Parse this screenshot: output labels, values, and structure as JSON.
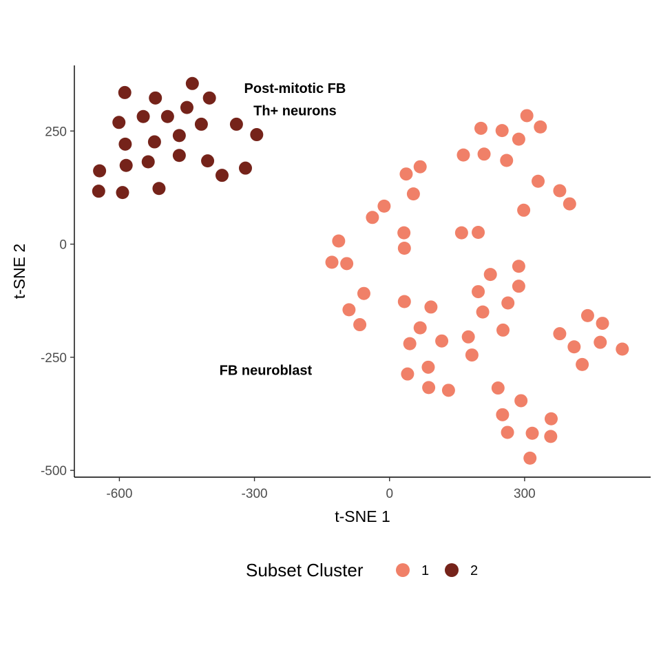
{
  "chart_data": {
    "type": "scatter",
    "xlabel": "t-SNE 1",
    "ylabel": "t-SNE 2",
    "xlim": [
      -700,
      580
    ],
    "ylim": [
      -515,
      395
    ],
    "x_ticks": [
      -600,
      -300,
      0,
      300
    ],
    "y_ticks": [
      -500,
      -250,
      0,
      250
    ],
    "grid": false,
    "legend": {
      "title": "Subset Cluster",
      "position": "bottom"
    },
    "annotations": [
      {
        "text": "Post-mitotic FB",
        "x": -210,
        "y": 345
      },
      {
        "text": "Th+ neurons",
        "x": -210,
        "y": 295
      },
      {
        "text": "FB neuroblast",
        "x": -275,
        "y": -278
      }
    ],
    "series": [
      {
        "name": "1",
        "color": "#F08068",
        "points": [
          [
            305,
            284
          ],
          [
            203,
            256
          ],
          [
            250,
            251
          ],
          [
            335,
            259
          ],
          [
            287,
            232
          ],
          [
            164,
            197
          ],
          [
            210,
            199
          ],
          [
            260,
            185
          ],
          [
            37,
            155
          ],
          [
            68,
            171
          ],
          [
            330,
            139
          ],
          [
            378,
            118
          ],
          [
            53,
            111
          ],
          [
            400,
            89
          ],
          [
            -12,
            84
          ],
          [
            298,
            75
          ],
          [
            -38,
            59
          ],
          [
            32,
            25
          ],
          [
            160,
            25
          ],
          [
            197,
            26
          ],
          [
            -113,
            7
          ],
          [
            33,
            -9
          ],
          [
            -128,
            -40
          ],
          [
            -95,
            -43
          ],
          [
            287,
            -49
          ],
          [
            224,
            -67
          ],
          [
            287,
            -93
          ],
          [
            -57,
            -109
          ],
          [
            197,
            -105
          ],
          [
            33,
            -127
          ],
          [
            263,
            -130
          ],
          [
            92,
            -139
          ],
          [
            -90,
            -145
          ],
          [
            207,
            -150
          ],
          [
            440,
            -158
          ],
          [
            473,
            -175
          ],
          [
            -66,
            -178
          ],
          [
            68,
            -185
          ],
          [
            252,
            -190
          ],
          [
            378,
            -198
          ],
          [
            175,
            -205
          ],
          [
            116,
            -214
          ],
          [
            45,
            -220
          ],
          [
            468,
            -217
          ],
          [
            410,
            -227
          ],
          [
            517,
            -232
          ],
          [
            183,
            -245
          ],
          [
            86,
            -272
          ],
          [
            428,
            -266
          ],
          [
            40,
            -287
          ],
          [
            87,
            -317
          ],
          [
            131,
            -323
          ],
          [
            241,
            -318
          ],
          [
            292,
            -346
          ],
          [
            251,
            -377
          ],
          [
            359,
            -386
          ],
          [
            262,
            -416
          ],
          [
            317,
            -418
          ],
          [
            358,
            -425
          ],
          [
            312,
            -473
          ]
        ]
      },
      {
        "name": "2",
        "color": "#75231A",
        "points": [
          [
            -438,
            355
          ],
          [
            -588,
            335
          ],
          [
            -520,
            323
          ],
          [
            -400,
            323
          ],
          [
            -450,
            302
          ],
          [
            -547,
            282
          ],
          [
            -493,
            282
          ],
          [
            -601,
            269
          ],
          [
            -418,
            265
          ],
          [
            -340,
            265
          ],
          [
            -467,
            240
          ],
          [
            -295,
            242
          ],
          [
            -522,
            226
          ],
          [
            -587,
            221
          ],
          [
            -467,
            196
          ],
          [
            -536,
            182
          ],
          [
            -404,
            184
          ],
          [
            -585,
            174
          ],
          [
            -320,
            168
          ],
          [
            -372,
            152
          ],
          [
            -644,
            162
          ],
          [
            -646,
            117
          ],
          [
            -593,
            114
          ],
          [
            -512,
            123
          ]
        ]
      }
    ]
  }
}
